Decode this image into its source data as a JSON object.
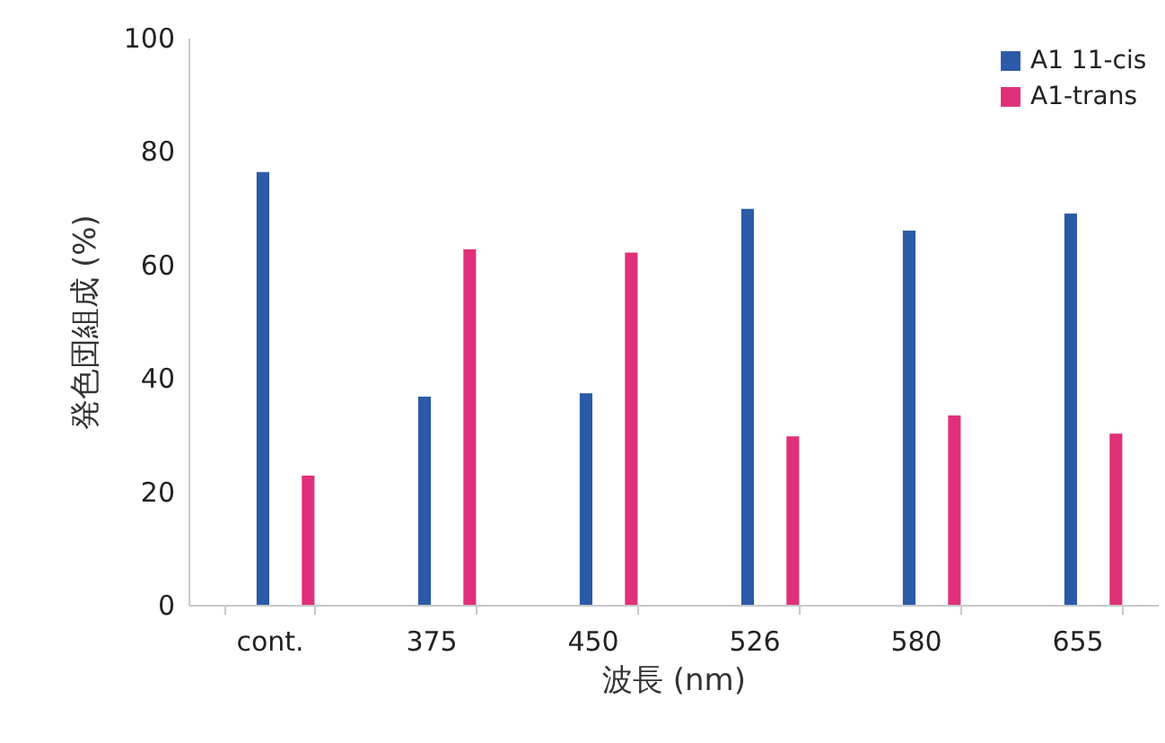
{
  "chart_data": {
    "type": "bar",
    "xlabel": "波長 (nm)",
    "ylabel": "発色団組成 (%)",
    "categories": [
      "cont.",
      "375",
      "450",
      "526",
      "580",
      "655"
    ],
    "series": [
      {
        "name": "A1 11-cis",
        "color": "#2b5aa8",
        "values": [
          76.3,
          36.7,
          37.3,
          69.8,
          66.0,
          69.0
        ]
      },
      {
        "name": "A1-trans",
        "color": "#e0307a",
        "values": [
          22.8,
          62.7,
          62.1,
          29.7,
          33.4,
          30.2
        ]
      }
    ],
    "ylim": [
      0,
      100
    ],
    "yticks": [
      0,
      20,
      40,
      60,
      80,
      100
    ],
    "grid": false,
    "legend": "top right"
  }
}
